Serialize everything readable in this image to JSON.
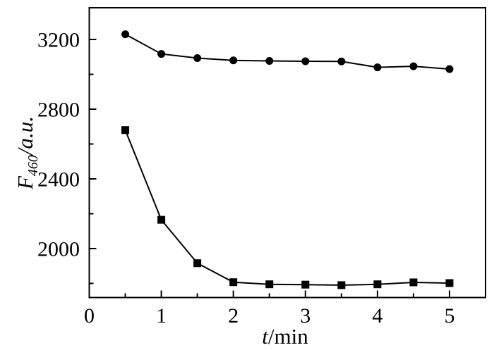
{
  "figure": {
    "background": "#ffffff",
    "foreground": "#000000"
  },
  "chart_data": {
    "type": "line",
    "title": "",
    "x": [
      0.5,
      1.0,
      1.5,
      2.0,
      2.5,
      3.0,
      3.5,
      4.0,
      4.5,
      5.0
    ],
    "series": [
      {
        "name": "circle-series",
        "marker": "circle",
        "color": "#000000",
        "values": [
          3230,
          3117,
          3093,
          3080,
          3077,
          3075,
          3074,
          3040,
          3046,
          3030
        ]
      },
      {
        "name": "square-series",
        "marker": "square",
        "color": "#000000",
        "values": [
          2680,
          2165,
          1916,
          1807,
          1795,
          1793,
          1790,
          1795,
          1806,
          1802
        ]
      }
    ],
    "xlabel": {
      "variable": "t",
      "separator": "/",
      "unit": "min",
      "text": "t/min"
    },
    "ylabel": {
      "variable": "F",
      "subscript": "460",
      "separator": "/",
      "unit": "a.u.",
      "text": "F460/a.u."
    },
    "xlim": [
      0,
      5.5
    ],
    "ylim": [
      1719,
      3382
    ],
    "x_major_ticks": [
      0,
      1,
      2,
      3,
      4,
      5
    ],
    "x_major_tick_labels": [
      "0",
      "1",
      "2",
      "3",
      "4",
      "5"
    ],
    "x_minor_ticks": [
      0.5,
      1.5,
      2.5,
      3.5,
      4.5
    ],
    "y_major_ticks": [
      2000,
      2400,
      2800,
      3200
    ],
    "y_major_tick_labels": [
      "2000",
      "2400",
      "2800",
      "3200"
    ],
    "y_minor_ticks": [
      1800,
      2200,
      2600,
      3000
    ],
    "grid": false,
    "legend": null,
    "axis_color": "#000000",
    "background": "#ffffff"
  }
}
